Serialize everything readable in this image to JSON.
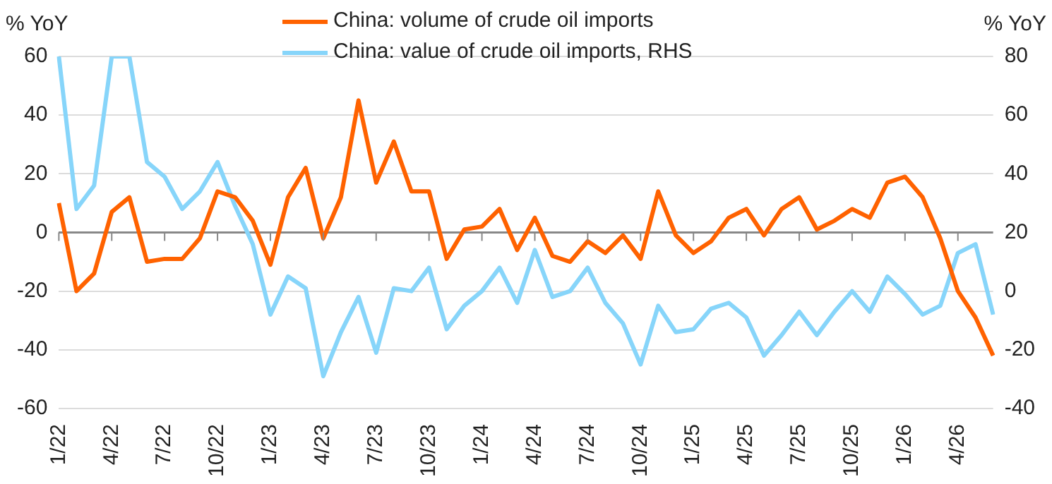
{
  "chart_data": {
    "type": "line",
    "ylabel": "% YoY",
    "y2label": "% YoY",
    "categories": [
      "1/22",
      null,
      null,
      "4/22",
      null,
      null,
      "7/22",
      null,
      null,
      "10/22",
      null,
      null,
      "1/23",
      null,
      null,
      "4/23",
      null,
      null,
      "7/23",
      null,
      null,
      "10/23",
      null,
      null,
      "1/24",
      null,
      null,
      "4/24",
      null,
      null,
      "7/24",
      null,
      null,
      "10/24",
      null,
      null,
      "1/25",
      null,
      null,
      "4/25",
      null,
      null,
      "7/25",
      null,
      null,
      "10/25",
      null,
      null,
      "1/26",
      null,
      null,
      "4/26",
      null,
      null
    ],
    "series": [
      {
        "name": "China: volume of crude oil imports",
        "color": "#ff6200",
        "values": [
          10,
          -20,
          -14,
          7,
          12,
          -10,
          -9,
          -9,
          -2,
          14,
          12,
          4,
          -11,
          12,
          22,
          -2,
          12,
          45,
          17,
          31,
          14,
          14,
          -9,
          1,
          2,
          8,
          -6,
          5,
          -8,
          -10,
          -3,
          -7,
          -1,
          -9,
          14,
          -1,
          -7,
          -3,
          5,
          8,
          -1,
          8,
          12,
          1,
          4,
          8,
          5,
          17,
          19,
          12,
          -2,
          -20,
          -29,
          -42
        ]
      },
      {
        "name": "China: value of crude oil imports, RHS",
        "color": "#87d5fa",
        "axis": "y2",
        "values": [
          80,
          28,
          36,
          80,
          80,
          44,
          39,
          28,
          34,
          44,
          29,
          16,
          -8,
          5,
          1,
          -29,
          -14,
          -2,
          -21,
          1,
          0,
          8,
          -13,
          -5,
          0,
          8,
          -4,
          14,
          -2,
          0,
          8,
          -4,
          -11,
          -25,
          -5,
          -14,
          -13,
          -6,
          -4,
          -9,
          -22,
          -15,
          -7,
          -15,
          -7,
          0,
          -7,
          5,
          -1,
          -8,
          -5,
          13,
          16,
          -8
        ]
      }
    ],
    "ylim": [
      -60,
      60
    ],
    "yticks": [
      -60,
      -40,
      -20,
      0,
      20,
      40,
      60
    ],
    "y2lim": [
      -40,
      80
    ],
    "y2ticks": [
      -40,
      -20,
      0,
      20,
      40,
      60,
      80
    ],
    "grid": "y",
    "legend": "top",
    "marker": "none",
    "line_style": "solid"
  }
}
